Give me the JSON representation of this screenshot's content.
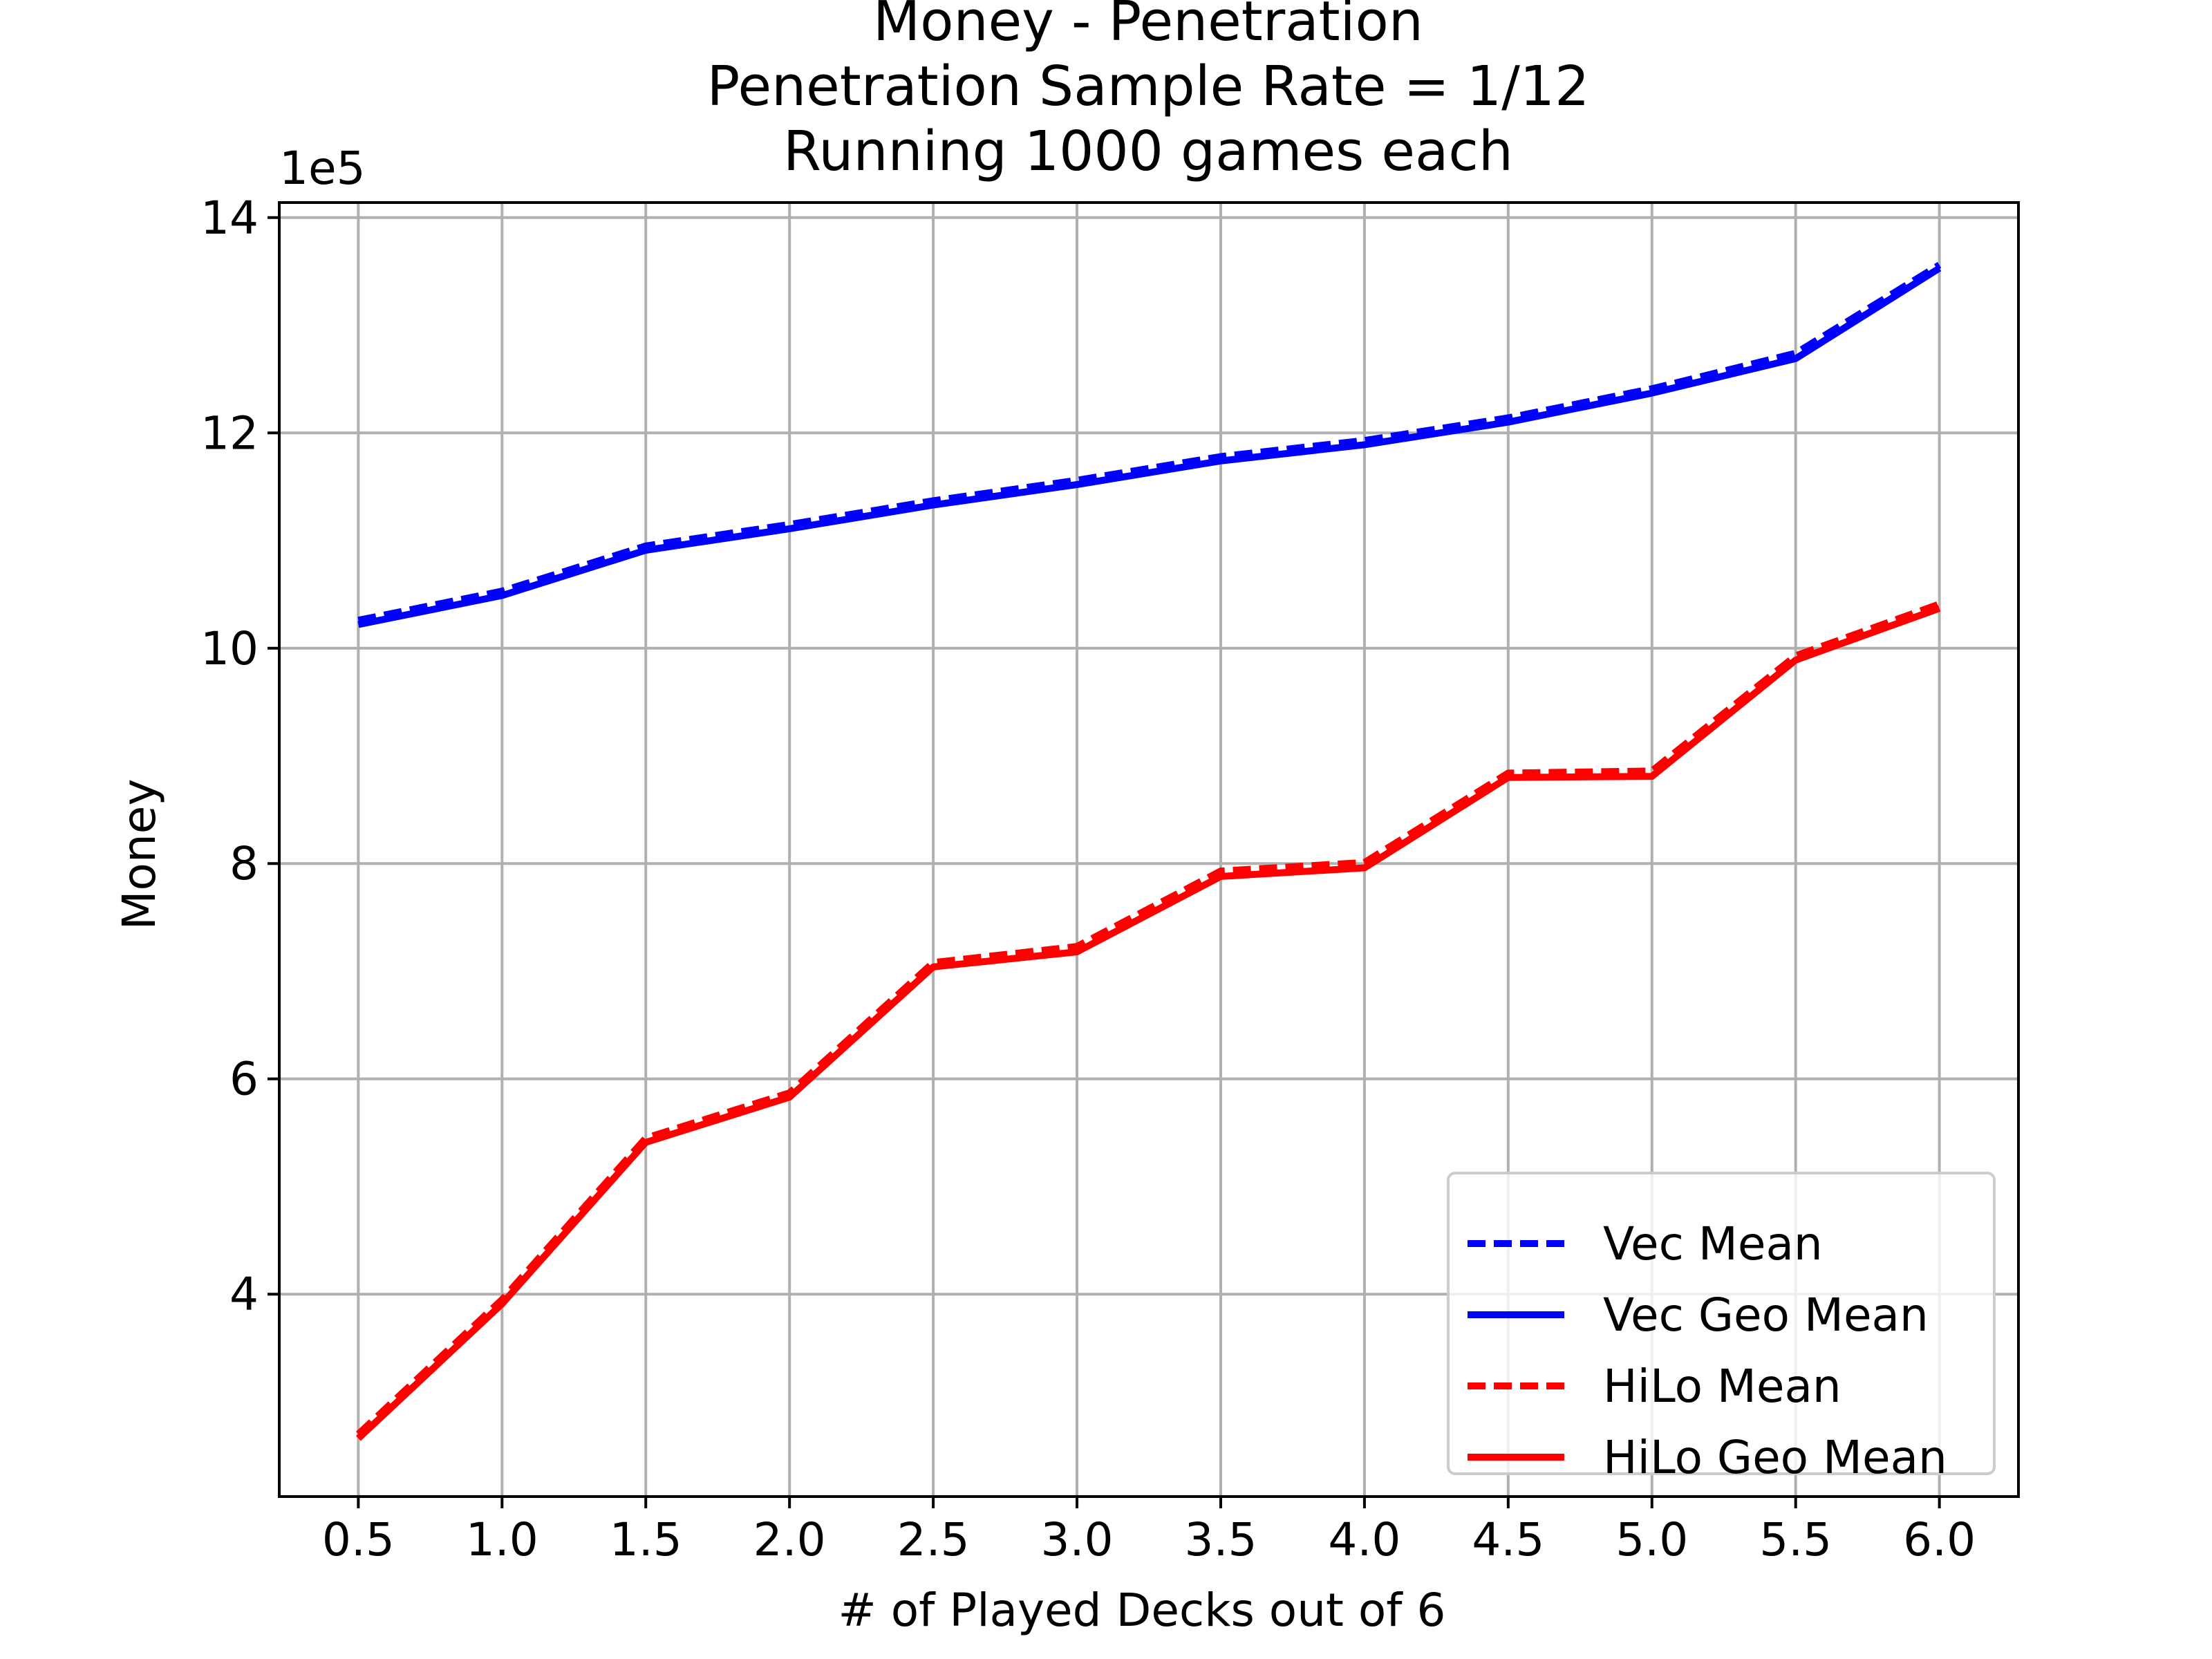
{
  "chart_data": {
    "type": "line",
    "title_lines": [
      "Money - Penetration",
      "Penetration Sample Rate = 1/12",
      "Running 1000 games each"
    ],
    "xlabel": "# of Played Decks out of 6",
    "ylabel": "Money",
    "y_offset_label": "1e5",
    "y_scale_factor": 100000,
    "x": [
      0.5,
      1.0,
      1.5,
      2.0,
      2.5,
      3.0,
      3.5,
      4.0,
      4.5,
      5.0,
      5.5,
      6.0
    ],
    "xticks": [
      "0.5",
      "1.0",
      "1.5",
      "2.0",
      "2.5",
      "3.0",
      "3.5",
      "4.0",
      "4.5",
      "5.0",
      "5.5",
      "6.0"
    ],
    "yticks": [
      "4",
      "6",
      "8",
      "10",
      "12",
      "14"
    ],
    "ytick_values": [
      400000,
      600000,
      800000,
      1000000,
      1200000,
      1400000
    ],
    "xlim": [
      0.225,
      6.275
    ],
    "ylim": [
      212000,
      1414000
    ],
    "grid": true,
    "legend_position": "lower-right",
    "series": [
      {
        "name": "Vec Mean",
        "color": "#0000ff",
        "style": "dashed",
        "values": [
          1026000,
          1053000,
          1095000,
          1115000,
          1137000,
          1156000,
          1178000,
          1193000,
          1214000,
          1241000,
          1274000,
          1356000
        ]
      },
      {
        "name": "Vec Geo Mean",
        "color": "#0000ff",
        "style": "solid",
        "values": [
          1022000,
          1049000,
          1091000,
          1111000,
          1133000,
          1152000,
          1174000,
          1189000,
          1210000,
          1237000,
          1269000,
          1353000
        ]
      },
      {
        "name": "HiLo Mean",
        "color": "#ff0000",
        "style": "dashed",
        "values": [
          270000,
          395000,
          545000,
          587000,
          708000,
          723000,
          793000,
          801000,
          884000,
          886000,
          993000,
          1041000
        ]
      },
      {
        "name": "HiLo Geo Mean",
        "color": "#ff0000",
        "style": "solid",
        "values": [
          266000,
          391000,
          541000,
          583000,
          704000,
          718000,
          788000,
          796000,
          880000,
          881000,
          989000,
          1037000
        ]
      }
    ]
  }
}
